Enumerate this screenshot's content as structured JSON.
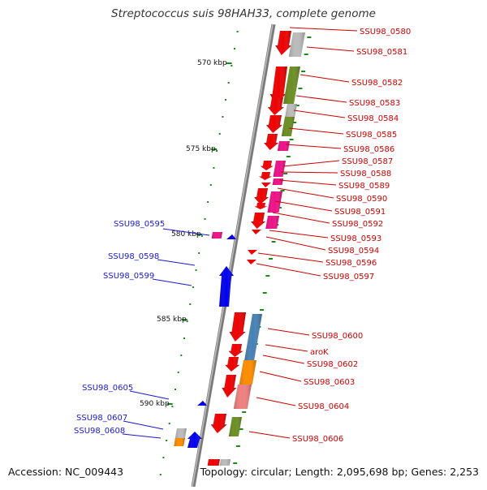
{
  "title": "Streptococcus suis 98HAH33, complete genome",
  "footer": {
    "accession": "Accession: NC_009443",
    "summary": "Topology: circular; Length: 2,095,698 bp; Genes: 2,253"
  },
  "colors": {
    "forward_label": "#cc0000",
    "reverse_label": "#1a1acc",
    "axis": "#888888",
    "tick": "#1a8a1a",
    "red": "#ee0000",
    "blue": "#0000ee",
    "magenta": "#ee1188",
    "olive": "#6b8e23",
    "gray": "#bbbbbb",
    "orange": "#ff8c00",
    "steelblue": "#4682b4",
    "pink": "#f08080"
  },
  "kbp_labels": [
    "570 kbp",
    "575 kbp",
    "580 kbp",
    "585 kbp",
    "590 kbp"
  ],
  "forward_genes": [
    "SSU98_0580",
    "SSU98_0581",
    "SSU98_0582",
    "SSU98_0583",
    "SSU98_0584",
    "SSU98_0585",
    "SSU98_0586",
    "SSU98_0587",
    "SSU98_0588",
    "SSU98_0589",
    "SSU98_0590",
    "SSU98_0591",
    "SSU98_0592",
    "SSU98_0593",
    "SSU98_0594",
    "SSU98_0596",
    "SSU98_0597",
    "SSU98_0600",
    "aroK",
    "SSU98_0602",
    "SSU98_0603",
    "SSU98_0604",
    "SSU98_0606"
  ],
  "reverse_genes": [
    "SSU98_0595",
    "SSU98_0598",
    "SSU98_0599",
    "SSU98_0605",
    "SSU98_0607",
    "SSU98_0608"
  ]
}
